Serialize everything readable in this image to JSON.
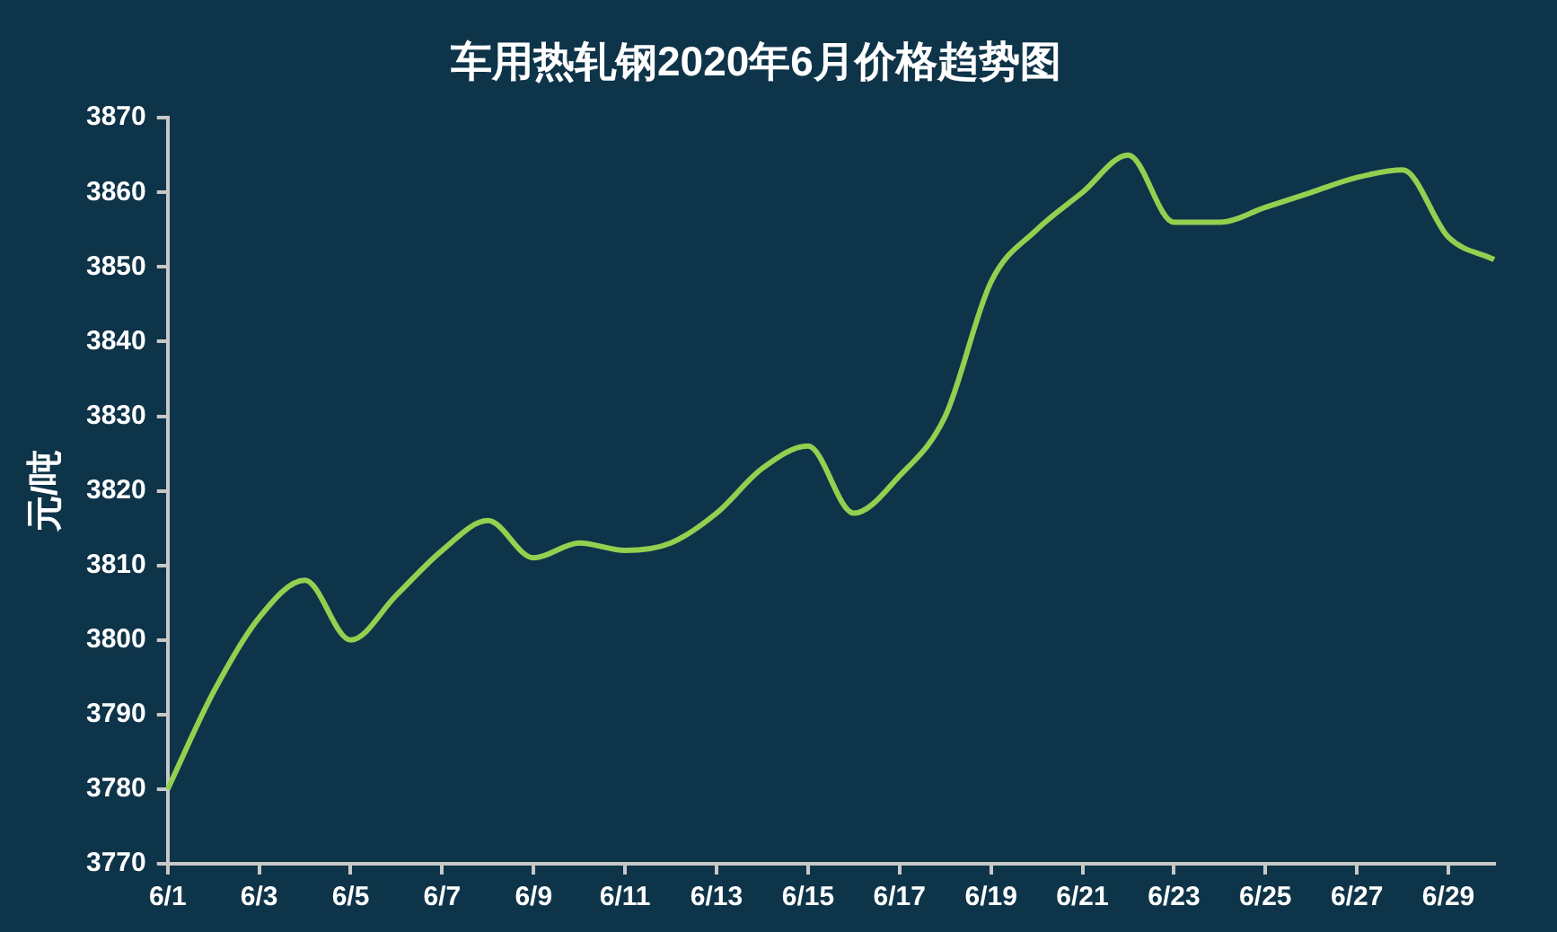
{
  "chart_data": {
    "type": "line",
    "title": "车用热轧钢2020年6月价格趋势图",
    "ylabel": "元/吨",
    "categories": [
      "6/1",
      null,
      "6/3",
      null,
      "6/5",
      null,
      "6/7",
      null,
      "6/9",
      null,
      "6/11",
      null,
      "6/13",
      null,
      "6/15",
      null,
      "6/17",
      null,
      "6/19",
      null,
      "6/21",
      null,
      "6/23",
      null,
      "6/25",
      null,
      "6/27",
      null,
      "6/29",
      null
    ],
    "series": [
      {
        "color": "#92d050",
        "values": [
          3780,
          3793,
          3803,
          3808,
          3800,
          3806,
          3812,
          3816,
          3811,
          3813,
          3812,
          3813,
          3817,
          3823,
          3826,
          3817,
          3822,
          3830,
          3848,
          3855,
          3860,
          3865,
          3856,
          3856,
          3858,
          3860,
          3862,
          3863,
          3854,
          3851
        ]
      }
    ],
    "ylim": [
      3770,
      3870
    ],
    "yticks": [
      3770,
      3780,
      3790,
      3800,
      3810,
      3820,
      3830,
      3840,
      3850,
      3860,
      3870
    ],
    "grid": false,
    "legend": false,
    "marker": "none",
    "line_style": "solid"
  }
}
